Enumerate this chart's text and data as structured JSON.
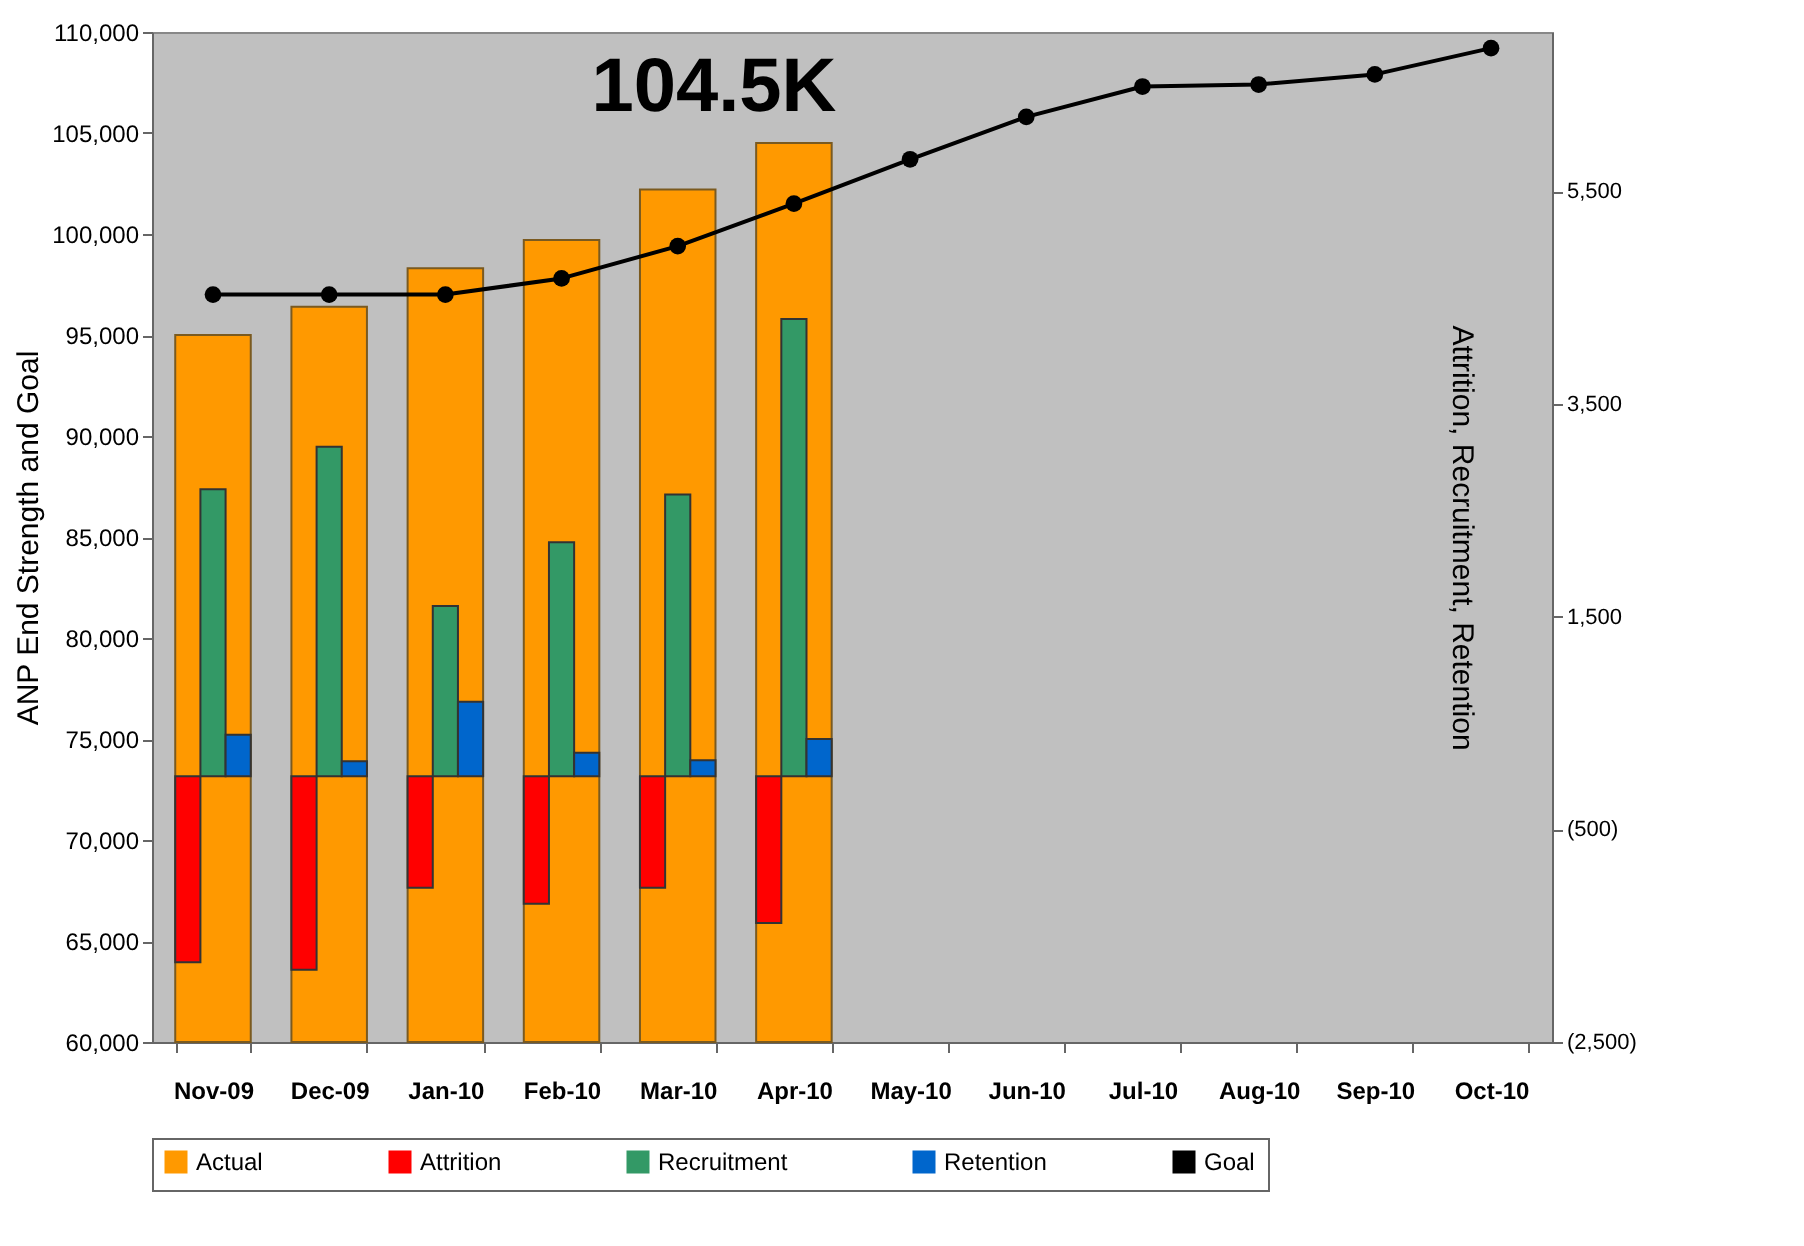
{
  "chart_data": {
    "type": "bar",
    "ylabel": "ANP End Strength and Goal",
    "y2label": "Attrition, Recruitment, Retention",
    "categories": [
      "Nov-09",
      "Dec-09",
      "Jan-10",
      "Feb-10",
      "Mar-10",
      "Apr-10",
      "May-10",
      "Jun-10",
      "Jul-10",
      "Aug-10",
      "Sep-10",
      "Oct-10"
    ],
    "series": [
      {
        "name": "Actual",
        "color": "#ff9900",
        "values": [
          95000,
          96400,
          98300,
          99700,
          102200,
          104500,
          null,
          null,
          null,
          null,
          null,
          null
        ]
      },
      {
        "name": "Attrition",
        "color": "#ff0000",
        "axis": "y2",
        "values": [
          -1750,
          -1820,
          -1050,
          -1200,
          -1050,
          -1380,
          null,
          null,
          null,
          null,
          null,
          null
        ]
      },
      {
        "name": "Recruitment",
        "color": "#339966",
        "axis": "y2",
        "values": [
          2700,
          3100,
          1600,
          2200,
          2650,
          4300,
          null,
          null,
          null,
          null,
          null,
          null
        ]
      },
      {
        "name": "Retention",
        "color": "#0066cc",
        "axis": "y2",
        "values": [
          390,
          140,
          700,
          220,
          150,
          350,
          null,
          null,
          null,
          null,
          null,
          null
        ]
      },
      {
        "name": "Goal",
        "type": "line",
        "color": "#000000",
        "values": [
          97000,
          97000,
          97000,
          97800,
          99400,
          101500,
          103700,
          105800,
          107300,
          107400,
          107900,
          109200
        ]
      }
    ],
    "ylim": [
      60000,
      110000
    ],
    "yticks": [
      {
        "value": 60000,
        "label": "60,000"
      },
      {
        "value": 65000,
        "label": "65,000"
      },
      {
        "value": 70000,
        "label": "70,000"
      },
      {
        "value": 75000,
        "label": "75,000"
      },
      {
        "value": 80000,
        "label": "80,000"
      },
      {
        "value": 85000,
        "label": "85,000"
      },
      {
        "value": 90000,
        "label": "90,000"
      },
      {
        "value": 95000,
        "label": "95,000"
      },
      {
        "value": 100000,
        "label": "100,000"
      },
      {
        "value": 105000,
        "label": "105,000"
      },
      {
        "value": 110000,
        "label": "110,000"
      }
    ],
    "y2lim": [
      -2500,
      7000
    ],
    "y2ticks": [
      {
        "value": -2500,
        "label": "(2,500)"
      },
      {
        "value": -500,
        "label": "(500)"
      },
      {
        "value": 1500,
        "label": "1,500"
      },
      {
        "value": 3500,
        "label": "3,500"
      },
      {
        "value": 5500,
        "label": "5,500"
      }
    ],
    "annotations": [
      {
        "text": "104.5K",
        "x": "Apr-10",
        "y": 104500
      }
    ],
    "marker": "circle",
    "legend": "bottom",
    "grid": false
  }
}
